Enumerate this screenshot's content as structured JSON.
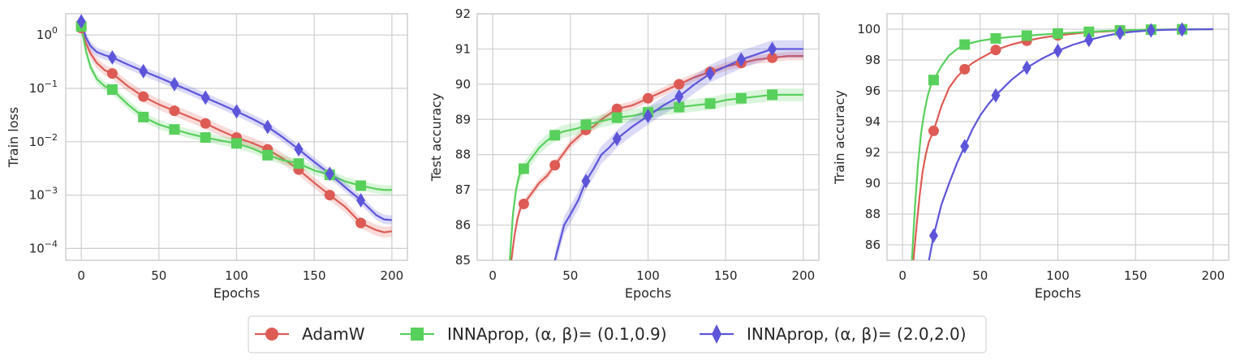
{
  "colors": {
    "adamw": "#dd5b54",
    "inna01": "#58d05c",
    "inna20": "#5d55d9",
    "grid": "#cfcfcf",
    "frame": "#cfcfcf",
    "text": "#262626"
  },
  "legend": [
    {
      "key": "adamw",
      "label": "AdamW",
      "marker": "circle",
      "color": "#dd5b54"
    },
    {
      "key": "inna01",
      "label": "INNAprop, (α, β)= (0.1,0.9)",
      "marker": "square",
      "color": "#58d05c"
    },
    {
      "key": "inna20",
      "label": "INNAprop, (α, β)= (2.0,2.0)",
      "marker": "diamond",
      "color": "#5d55d9"
    }
  ],
  "chart_data": [
    {
      "type": "line",
      "id": "train-loss",
      "xlabel": "Epochs",
      "ylabel": "Train loss",
      "yscale": "log",
      "xlim": [
        -10,
        210
      ],
      "ylim": [
        6e-05,
        2.5
      ],
      "xticks": [
        0,
        50,
        100,
        150,
        200
      ],
      "yticks": [
        {
          "value": 1,
          "base": "10",
          "exp": "0"
        },
        {
          "value": 0.1,
          "base": "10",
          "exp": "−1"
        },
        {
          "value": 0.01,
          "base": "10",
          "exp": "−2"
        },
        {
          "value": 0.001,
          "base": "10",
          "exp": "−3"
        },
        {
          "value": 0.0001,
          "base": "10",
          "exp": "−4"
        }
      ],
      "series": [
        {
          "key": "adamw",
          "name": "AdamW",
          "band": 0.12,
          "x": [
            0,
            3,
            6,
            10,
            15,
            20,
            30,
            40,
            50,
            60,
            70,
            80,
            90,
            100,
            110,
            120,
            130,
            140,
            150,
            160,
            170,
            180,
            190,
            195,
            200
          ],
          "y": [
            1.35,
            0.7,
            0.45,
            0.3,
            0.22,
            0.19,
            0.11,
            0.07,
            0.05,
            0.038,
            0.029,
            0.022,
            0.016,
            0.012,
            0.0095,
            0.0072,
            0.0048,
            0.003,
            0.0017,
            0.001,
            0.0006,
            0.0003,
            0.00022,
            0.0002,
            0.00021
          ],
          "markers_x": [
            0,
            20,
            40,
            60,
            80,
            100,
            120,
            140,
            160,
            180
          ],
          "markers_y": [
            1.35,
            0.19,
            0.07,
            0.038,
            0.022,
            0.012,
            0.0072,
            0.003,
            0.001,
            0.0003
          ]
        },
        {
          "key": "inna01",
          "name": "INNAprop, (α, β)= (0.1,0.9)",
          "band": 0.1,
          "x": [
            0,
            3,
            6,
            10,
            15,
            20,
            30,
            40,
            50,
            60,
            70,
            80,
            90,
            100,
            110,
            120,
            130,
            140,
            150,
            160,
            170,
            180,
            190,
            195,
            200
          ],
          "y": [
            1.45,
            0.5,
            0.25,
            0.15,
            0.11,
            0.095,
            0.05,
            0.029,
            0.021,
            0.017,
            0.014,
            0.012,
            0.0105,
            0.0093,
            0.0075,
            0.0056,
            0.0045,
            0.0039,
            0.0029,
            0.0024,
            0.0018,
            0.0015,
            0.0013,
            0.00125,
            0.00125
          ],
          "markers_x": [
            0,
            20,
            40,
            60,
            80,
            100,
            120,
            140,
            160,
            180
          ],
          "markers_y": [
            1.45,
            0.095,
            0.029,
            0.017,
            0.012,
            0.0093,
            0.0056,
            0.0039,
            0.0024,
            0.0015
          ]
        },
        {
          "key": "inna20",
          "name": "INNAprop, (α, β)= (2.0,2.0)",
          "band": 0.1,
          "x": [
            0,
            3,
            6,
            10,
            15,
            20,
            30,
            40,
            50,
            60,
            70,
            80,
            90,
            100,
            110,
            120,
            130,
            140,
            150,
            160,
            170,
            180,
            190,
            195,
            200
          ],
          "y": [
            1.8,
            0.9,
            0.62,
            0.48,
            0.42,
            0.38,
            0.28,
            0.21,
            0.16,
            0.12,
            0.09,
            0.067,
            0.05,
            0.037,
            0.027,
            0.019,
            0.012,
            0.0072,
            0.0042,
            0.0025,
            0.0014,
            0.0008,
            0.00042,
            0.00035,
            0.00034
          ],
          "markers_x": [
            0,
            20,
            40,
            60,
            80,
            100,
            120,
            140,
            160,
            180
          ],
          "markers_y": [
            1.8,
            0.38,
            0.21,
            0.12,
            0.067,
            0.037,
            0.019,
            0.0072,
            0.0025,
            0.0008
          ]
        }
      ]
    },
    {
      "type": "line",
      "id": "test-accuracy",
      "xlabel": "Epochs",
      "ylabel": "Test accuracy",
      "yscale": "linear",
      "xlim": [
        -10,
        210
      ],
      "ylim": [
        85,
        92
      ],
      "xticks": [
        0,
        50,
        100,
        150,
        200
      ],
      "yticks": [
        85,
        86,
        87,
        88,
        89,
        90,
        91,
        92
      ],
      "series": [
        {
          "key": "adamw",
          "name": "AdamW",
          "band": 0.12,
          "x": [
            12,
            14,
            16,
            18,
            20,
            25,
            30,
            35,
            40,
            45,
            50,
            55,
            60,
            65,
            70,
            80,
            90,
            100,
            110,
            120,
            130,
            140,
            150,
            160,
            170,
            180,
            190,
            200
          ],
          "y": [
            85.0,
            85.7,
            86.2,
            86.5,
            86.6,
            86.9,
            87.2,
            87.4,
            87.7,
            88.0,
            88.3,
            88.5,
            88.7,
            88.8,
            89.0,
            89.3,
            89.4,
            89.6,
            89.8,
            90.0,
            90.2,
            90.35,
            90.5,
            90.6,
            90.7,
            90.75,
            90.8,
            90.8
          ],
          "markers_x": [
            20,
            40,
            60,
            80,
            100,
            120,
            140,
            160,
            180
          ],
          "markers_y": [
            86.6,
            87.7,
            88.7,
            89.3,
            89.6,
            90.0,
            90.35,
            90.6,
            90.75
          ]
        },
        {
          "key": "inna01",
          "name": "INNAprop, (α, β)= (0.1,0.9)",
          "band": 0.18,
          "x": [
            11,
            13,
            15,
            17,
            20,
            25,
            30,
            35,
            40,
            45,
            50,
            55,
            60,
            70,
            80,
            90,
            100,
            110,
            120,
            130,
            140,
            150,
            160,
            170,
            180,
            190,
            200
          ],
          "y": [
            85.0,
            86.3,
            87.0,
            87.4,
            87.6,
            87.9,
            88.2,
            88.4,
            88.55,
            88.65,
            88.7,
            88.75,
            88.85,
            88.95,
            89.05,
            89.1,
            89.2,
            89.3,
            89.35,
            89.4,
            89.45,
            89.55,
            89.6,
            89.65,
            89.7,
            89.7,
            89.7
          ],
          "markers_x": [
            20,
            40,
            60,
            80,
            100,
            120,
            140,
            160,
            180
          ],
          "markers_y": [
            87.6,
            88.55,
            88.85,
            89.05,
            89.2,
            89.35,
            89.45,
            89.6,
            89.7
          ]
        },
        {
          "key": "inna20",
          "name": "INNAprop, (α, β)= (2.0,2.0)",
          "band": 0.25,
          "x": [
            40,
            43,
            46,
            50,
            55,
            60,
            65,
            70,
            75,
            80,
            90,
            100,
            110,
            120,
            130,
            140,
            150,
            160,
            170,
            180,
            190,
            200
          ],
          "y": [
            85.0,
            85.5,
            86.0,
            86.3,
            86.7,
            87.25,
            87.6,
            88.0,
            88.2,
            88.45,
            88.8,
            89.1,
            89.4,
            89.65,
            90.0,
            90.3,
            90.5,
            90.7,
            90.85,
            91.0,
            91.0,
            91.0
          ],
          "markers_x": [
            60,
            80,
            100,
            120,
            140,
            160,
            180
          ],
          "markers_y": [
            87.25,
            88.45,
            89.1,
            89.65,
            90.3,
            90.7,
            91.0
          ]
        }
      ]
    },
    {
      "type": "line",
      "id": "train-accuracy",
      "xlabel": "Epochs",
      "ylabel": "Train accuracy",
      "yscale": "linear",
      "xlim": [
        -10,
        210
      ],
      "ylim": [
        85,
        101
      ],
      "xticks": [
        0,
        50,
        100,
        150,
        200
      ],
      "yticks": [
        86,
        88,
        90,
        92,
        94,
        96,
        98,
        100
      ],
      "series": [
        {
          "key": "adamw",
          "name": "AdamW",
          "band": 0.0,
          "x": [
            7,
            9,
            11,
            13,
            15,
            17,
            20,
            25,
            30,
            35,
            40,
            45,
            50,
            60,
            70,
            80,
            90,
            100,
            110,
            120,
            130,
            140,
            150,
            160,
            170,
            180,
            190,
            200
          ],
          "y": [
            85.0,
            87.2,
            89.2,
            90.8,
            91.9,
            92.7,
            93.4,
            95.0,
            96.2,
            96.9,
            97.4,
            97.8,
            98.1,
            98.65,
            99.0,
            99.25,
            99.45,
            99.6,
            99.7,
            99.8,
            99.85,
            99.9,
            99.93,
            99.95,
            99.97,
            99.98,
            99.99,
            100.0
          ],
          "markers_x": [
            20,
            40,
            60,
            80,
            100,
            120,
            140,
            160,
            180
          ],
          "markers_y": [
            93.4,
            97.4,
            98.65,
            99.25,
            99.6,
            99.8,
            99.9,
            99.95,
            99.98
          ]
        },
        {
          "key": "inna01",
          "name": "INNAprop, (α, β)= (0.1,0.9)",
          "band": 0.0,
          "x": [
            6,
            8,
            10,
            12,
            14,
            16,
            18,
            20,
            25,
            30,
            35,
            40,
            50,
            60,
            70,
            80,
            90,
            100,
            110,
            120,
            130,
            140,
            150,
            160,
            170,
            180,
            190,
            200
          ],
          "y": [
            85.0,
            88.5,
            91.3,
            93.3,
            94.6,
            95.6,
            96.3,
            96.7,
            97.6,
            98.3,
            98.7,
            99.0,
            99.25,
            99.4,
            99.5,
            99.58,
            99.65,
            99.72,
            99.78,
            99.83,
            99.88,
            99.92,
            99.95,
            99.97,
            99.98,
            99.99,
            100.0,
            100.0
          ],
          "markers_x": [
            20,
            40,
            60,
            80,
            100,
            120,
            140,
            160,
            180
          ],
          "markers_y": [
            96.7,
            99.0,
            99.4,
            99.58,
            99.72,
            99.83,
            99.92,
            99.97,
            99.99
          ]
        },
        {
          "key": "inna20",
          "name": "INNAprop, (α, β)= (2.0,2.0)",
          "band": 0.0,
          "x": [
            17,
            20,
            25,
            30,
            35,
            40,
            45,
            50,
            55,
            60,
            70,
            80,
            90,
            100,
            110,
            120,
            130,
            140,
            150,
            160,
            170,
            180,
            190,
            200
          ],
          "y": [
            85.0,
            86.6,
            88.6,
            90.0,
            91.3,
            92.4,
            93.5,
            94.4,
            95.1,
            95.7,
            96.7,
            97.5,
            98.1,
            98.6,
            99.0,
            99.3,
            99.55,
            99.75,
            99.85,
            99.92,
            99.96,
            99.98,
            99.99,
            100.0
          ],
          "markers_x": [
            20,
            40,
            60,
            80,
            100,
            120,
            140,
            160,
            180
          ],
          "markers_y": [
            86.6,
            92.4,
            95.7,
            97.5,
            98.6,
            99.3,
            99.75,
            99.92,
            99.98
          ]
        }
      ]
    }
  ]
}
